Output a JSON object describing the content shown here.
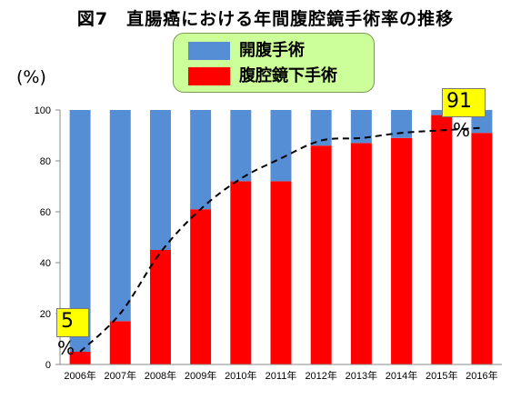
{
  "chart_data": {
    "type": "bar",
    "stacked": true,
    "title": "図7　直腸癌における年間腹腔鏡手術率の推移",
    "ylabel": "(%)",
    "xlabel": "",
    "ylim": [
      0,
      100
    ],
    "yticks": [
      0,
      20,
      40,
      60,
      80,
      100
    ],
    "grid": false,
    "legend_position": "top",
    "categories": [
      "2006年",
      "2007年",
      "2008年",
      "2009年",
      "2010年",
      "2011年",
      "2012年",
      "2013年",
      "2014年",
      "2015年",
      "2016年"
    ],
    "series": [
      {
        "name": "腹腔鏡下手術",
        "color": "#ff0000",
        "values": [
          5,
          17,
          45,
          61,
          72,
          72,
          86,
          87,
          89,
          98,
          91
        ]
      },
      {
        "name": "開腹手術",
        "color": "#558ed5",
        "values": [
          95,
          83,
          55,
          39,
          28,
          28,
          14,
          13,
          11,
          2,
          9
        ]
      }
    ],
    "trend_line": {
      "style": "dashed",
      "color": "#000000",
      "values": [
        5,
        20,
        44,
        61,
        73,
        81,
        88,
        89,
        91,
        92,
        93
      ]
    },
    "annotations": [
      {
        "text": "5",
        "suffix": "%",
        "category": "2006年",
        "background": "#ffff00"
      },
      {
        "text": "91",
        "suffix": "%",
        "category": "2016年",
        "background": "#ffff00"
      }
    ]
  }
}
